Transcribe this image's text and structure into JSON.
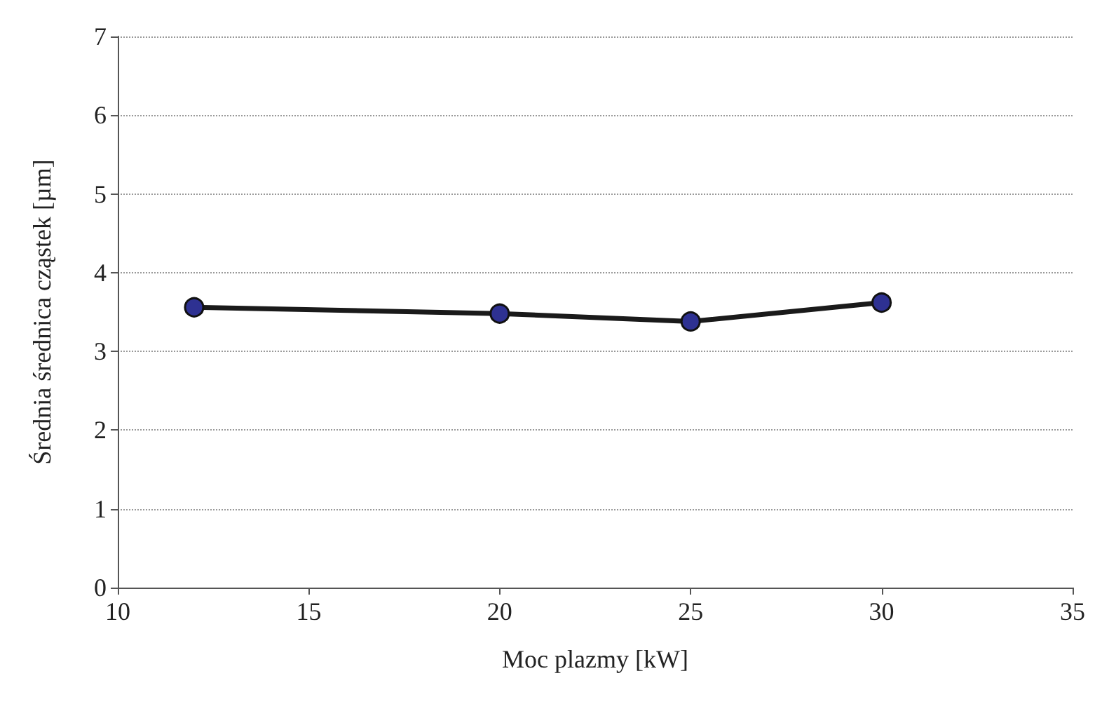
{
  "chart_data": {
    "type": "line",
    "xlabel": "Moc plazmy [kW]",
    "ylabel": "Średnia średnica cząstek [µm]",
    "x": [
      12,
      20,
      25,
      30
    ],
    "series": [
      {
        "color": "#2e3192",
        "values": [
          3.56,
          3.48,
          3.38,
          3.62
        ]
      }
    ],
    "xlim": [
      10,
      35
    ],
    "xticks": [
      10,
      15,
      20,
      25,
      30,
      35
    ],
    "ylim": [
      0,
      7
    ],
    "yticks": [
      0,
      1,
      2,
      3,
      4,
      5,
      6,
      7
    ],
    "grid": "y",
    "marker": "circle",
    "line_style": "solid"
  }
}
